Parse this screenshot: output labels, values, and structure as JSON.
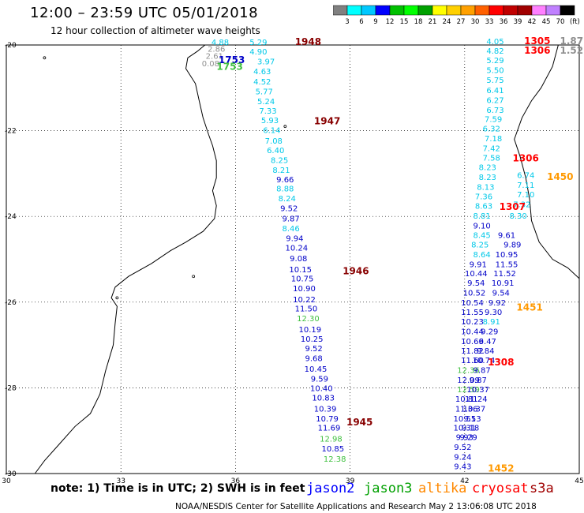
{
  "title": "12:00 – 23:59 UTC 05/01/2018",
  "subtitle": "12 hour collection of altimeter wave heights",
  "colorbar": {
    "unit": "(ft)",
    "ticks": [
      "3",
      "6",
      "9",
      "12",
      "15",
      "18",
      "21",
      "24",
      "27",
      "30",
      "33",
      "36",
      "39",
      "42",
      "45",
      "70"
    ],
    "colors": [
      "#808080",
      "#00ffff",
      "#00c8ff",
      "#0000ff",
      "#00c000",
      "#00ff00",
      "#00a000",
      "#ffff00",
      "#ffd000",
      "#ffa000",
      "#ff6000",
      "#ff0000",
      "#c00000",
      "#a00000",
      "#ff80ff",
      "#c080ff",
      "#000000"
    ]
  },
  "axes": {
    "lon_ticks": [
      "30",
      "33",
      "36",
      "39",
      "42",
      "45"
    ],
    "lat_ticks": [
      "-20",
      "-22",
      "-24",
      "-26",
      "-28",
      "-30"
    ],
    "lon_min": 30,
    "lon_max": 45,
    "lat_min": -30,
    "lat_max": -20
  },
  "note": "note: 1) Time is in UTC; 2) SWH is in feet",
  "legend": [
    {
      "name": "jason2",
      "color": "#0000ff"
    },
    {
      "name": "jason3",
      "color": "#00a000"
    },
    {
      "name": "altika",
      "color": "#ff8800"
    },
    {
      "name": "cryosat",
      "color": "#ff0000"
    },
    {
      "name": "s3a",
      "color": "#a00000"
    }
  ],
  "credit": "NOAA/NESDIS Center for Satellite Applications and Research   May  2 13:06:08 UTC 2018",
  "colors": {
    "cyan": "#00c8e8",
    "blue": "#0000c8",
    "green": "#40c040",
    "orange": "#ff9900",
    "red": "#ff0000",
    "darkred": "#880000",
    "gray": "#909090"
  },
  "track_west": [
    {
      "lon": 35.6,
      "lat": -20.0,
      "v": "4.88",
      "c": "cyan"
    },
    {
      "lon": 36.6,
      "lat": -20.0,
      "v": "5.29",
      "c": "cyan"
    },
    {
      "lon": 35.5,
      "lat": -20.16,
      "v": "2.86",
      "c": "gray"
    },
    {
      "lon": 36.6,
      "lat": -20.22,
      "v": "4.90",
      "c": "cyan"
    },
    {
      "lon": 35.45,
      "lat": -20.32,
      "v": "2.61",
      "c": "gray"
    },
    {
      "lon": 36.8,
      "lat": -20.45,
      "v": "3.97",
      "c": "cyan"
    },
    {
      "lon": 35.35,
      "lat": -20.5,
      "v": "0.08",
      "c": "gray"
    },
    {
      "lon": 36.7,
      "lat": -20.68,
      "v": "4.63",
      "c": "cyan"
    },
    {
      "lon": 36.7,
      "lat": -20.92,
      "v": "4.52",
      "c": "cyan"
    },
    {
      "lon": 36.75,
      "lat": -21.15,
      "v": "5.77",
      "c": "cyan"
    },
    {
      "lon": 36.8,
      "lat": -21.38,
      "v": "5.24",
      "c": "cyan"
    },
    {
      "lon": 36.85,
      "lat": -21.6,
      "v": "7.33",
      "c": "cyan"
    },
    {
      "lon": 36.9,
      "lat": -21.82,
      "v": "5.93",
      "c": "cyan"
    },
    {
      "lon": 36.95,
      "lat": -22.05,
      "v": "6.14",
      "c": "cyan"
    },
    {
      "lon": 37.0,
      "lat": -22.3,
      "v": "7.08",
      "c": "cyan"
    },
    {
      "lon": 37.05,
      "lat": -22.52,
      "v": "6.40",
      "c": "cyan"
    },
    {
      "lon": 37.15,
      "lat": -22.75,
      "v": "8.25",
      "c": "cyan"
    },
    {
      "lon": 37.2,
      "lat": -22.98,
      "v": "8.21",
      "c": "cyan"
    },
    {
      "lon": 37.3,
      "lat": -23.2,
      "v": "9.66",
      "c": "blue"
    },
    {
      "lon": 37.3,
      "lat": -23.42,
      "v": "8.88",
      "c": "cyan"
    },
    {
      "lon": 37.35,
      "lat": -23.65,
      "v": "8.24",
      "c": "cyan"
    },
    {
      "lon": 37.4,
      "lat": -23.88,
      "v": "9.52",
      "c": "blue"
    },
    {
      "lon": 37.45,
      "lat": -24.12,
      "v": "9.87",
      "c": "blue"
    },
    {
      "lon": 37.45,
      "lat": -24.35,
      "v": "8.46",
      "c": "cyan"
    },
    {
      "lon": 37.55,
      "lat": -24.58,
      "v": "9.94",
      "c": "blue"
    },
    {
      "lon": 37.6,
      "lat": -24.8,
      "v": "10.24",
      "c": "blue"
    },
    {
      "lon": 37.65,
      "lat": -25.05,
      "v": "9.08",
      "c": "blue"
    },
    {
      "lon": 37.7,
      "lat": -25.3,
      "v": "10.15",
      "c": "blue"
    },
    {
      "lon": 37.75,
      "lat": -25.52,
      "v": "10.75",
      "c": "blue"
    },
    {
      "lon": 37.8,
      "lat": -25.75,
      "v": "10.90",
      "c": "blue"
    },
    {
      "lon": 37.8,
      "lat": -26.0,
      "v": "10.22",
      "c": "blue"
    },
    {
      "lon": 37.85,
      "lat": -26.22,
      "v": "11.50",
      "c": "blue"
    },
    {
      "lon": 37.9,
      "lat": -26.45,
      "v": "12.30",
      "c": "green"
    },
    {
      "lon": 37.95,
      "lat": -26.7,
      "v": "10.19",
      "c": "blue"
    },
    {
      "lon": 38.0,
      "lat": -26.92,
      "v": "10.25",
      "c": "blue"
    },
    {
      "lon": 38.05,
      "lat": -27.15,
      "v": "9.52",
      "c": "blue"
    },
    {
      "lon": 38.05,
      "lat": -27.38,
      "v": "9.68",
      "c": "blue"
    },
    {
      "lon": 38.1,
      "lat": -27.62,
      "v": "10.45",
      "c": "blue"
    },
    {
      "lon": 38.2,
      "lat": -27.85,
      "v": "9.59",
      "c": "blue"
    },
    {
      "lon": 38.25,
      "lat": -28.08,
      "v": "10.40",
      "c": "blue"
    },
    {
      "lon": 38.3,
      "lat": -28.3,
      "v": "10.83",
      "c": "blue"
    },
    {
      "lon": 38.35,
      "lat": -28.55,
      "v": "10.39",
      "c": "blue"
    },
    {
      "lon": 38.4,
      "lat": -28.78,
      "v": "10.79",
      "c": "blue"
    },
    {
      "lon": 38.45,
      "lat": -29.0,
      "v": "11.69",
      "c": "blue"
    },
    {
      "lon": 38.5,
      "lat": -29.25,
      "v": "12.98",
      "c": "green"
    },
    {
      "lon": 38.55,
      "lat": -29.48,
      "v": "10.85",
      "c": "blue"
    },
    {
      "lon": 38.6,
      "lat": -29.72,
      "v": "12.38",
      "c": "green"
    }
  ],
  "track_east": [
    {
      "lon": 42.8,
      "lat": -19.98,
      "v": "4.05",
      "c": "cyan"
    },
    {
      "lon": 42.8,
      "lat": -20.2,
      "v": "4.82",
      "c": "cyan"
    },
    {
      "lon": 42.8,
      "lat": -20.42,
      "v": "5.29",
      "c": "cyan"
    },
    {
      "lon": 42.8,
      "lat": -20.65,
      "v": "5.50",
      "c": "cyan"
    },
    {
      "lon": 42.8,
      "lat": -20.88,
      "v": "5.75",
      "c": "cyan"
    },
    {
      "lon": 42.8,
      "lat": -21.12,
      "v": "6.41",
      "c": "cyan"
    },
    {
      "lon": 42.8,
      "lat": -21.35,
      "v": "6.27",
      "c": "cyan"
    },
    {
      "lon": 42.8,
      "lat": -21.58,
      "v": "6.73",
      "c": "cyan"
    },
    {
      "lon": 42.75,
      "lat": -21.8,
      "v": "7.59",
      "c": "cyan"
    },
    {
      "lon": 42.7,
      "lat": -22.02,
      "v": "6.32",
      "c": "cyan"
    },
    {
      "lon": 42.75,
      "lat": -22.25,
      "v": "7.18",
      "c": "cyan"
    },
    {
      "lon": 42.7,
      "lat": -22.48,
      "v": "7.42",
      "c": "cyan"
    },
    {
      "lon": 42.7,
      "lat": -22.7,
      "v": "7.58",
      "c": "cyan"
    },
    {
      "lon": 42.6,
      "lat": -22.92,
      "v": "8.23",
      "c": "cyan"
    },
    {
      "lon": 42.6,
      "lat": -23.15,
      "v": "8.23",
      "c": "cyan"
    },
    {
      "lon": 42.55,
      "lat": -23.38,
      "v": "8.13",
      "c": "cyan"
    },
    {
      "lon": 42.5,
      "lat": -23.6,
      "v": "7.36",
      "c": "cyan"
    },
    {
      "lon": 42.5,
      "lat": -23.82,
      "v": "8.63",
      "c": "cyan"
    },
    {
      "lon": 42.45,
      "lat": -24.05,
      "v": "8.81",
      "c": "cyan"
    },
    {
      "lon": 42.45,
      "lat": -24.28,
      "v": "9.10",
      "c": "blue"
    },
    {
      "lon": 42.45,
      "lat": -24.5,
      "v": "8.45",
      "c": "cyan"
    },
    {
      "lon": 42.4,
      "lat": -24.72,
      "v": "8.25",
      "c": "cyan"
    },
    {
      "lon": 42.45,
      "lat": -24.95,
      "v": "8.64",
      "c": "cyan"
    },
    {
      "lon": 42.35,
      "lat": -25.18,
      "v": "9.91",
      "c": "blue"
    },
    {
      "lon": 42.3,
      "lat": -25.4,
      "v": "10.44",
      "c": "blue"
    },
    {
      "lon": 42.3,
      "lat": -25.62,
      "v": "9.54",
      "c": "blue"
    },
    {
      "lon": 42.25,
      "lat": -25.85,
      "v": "10.52",
      "c": "blue"
    },
    {
      "lon": 42.2,
      "lat": -26.08,
      "v": "10.54",
      "c": "blue"
    },
    {
      "lon": 42.2,
      "lat": -26.3,
      "v": "11.55",
      "c": "blue"
    },
    {
      "lon": 42.2,
      "lat": -26.52,
      "v": "10.23",
      "c": "blue"
    },
    {
      "lon": 42.2,
      "lat": -26.75,
      "v": "10.44",
      "c": "blue"
    },
    {
      "lon": 42.2,
      "lat": -26.98,
      "v": "10.66",
      "c": "blue"
    },
    {
      "lon": 42.2,
      "lat": -27.2,
      "v": "11.82",
      "c": "blue"
    },
    {
      "lon": 42.2,
      "lat": -27.42,
      "v": "11.60",
      "c": "blue"
    },
    {
      "lon": 42.1,
      "lat": -27.65,
      "v": "12.36",
      "c": "green"
    },
    {
      "lon": 42.1,
      "lat": -27.88,
      "v": "12.09",
      "c": "blue"
    },
    {
      "lon": 42.1,
      "lat": -28.1,
      "v": "12.59",
      "c": "green"
    },
    {
      "lon": 42.05,
      "lat": -28.32,
      "v": "10.81",
      "c": "blue"
    },
    {
      "lon": 42.05,
      "lat": -28.55,
      "v": "11.36",
      "c": "blue"
    },
    {
      "lon": 42.0,
      "lat": -28.78,
      "v": "10.51",
      "c": "blue"
    },
    {
      "lon": 42.0,
      "lat": -29.0,
      "v": "10.31",
      "c": "blue"
    },
    {
      "lon": 42.0,
      "lat": -29.22,
      "v": "9.93",
      "c": "blue"
    },
    {
      "lon": 41.95,
      "lat": -29.45,
      "v": "9.52",
      "c": "blue"
    },
    {
      "lon": 41.95,
      "lat": -29.68,
      "v": "9.24",
      "c": "blue"
    },
    {
      "lon": 41.95,
      "lat": -29.9,
      "v": "9.43",
      "c": "blue"
    }
  ],
  "track_east2": [
    {
      "lon": 43.1,
      "lat": -24.5,
      "v": "9.61",
      "c": "blue"
    },
    {
      "lon": 43.25,
      "lat": -24.72,
      "v": "9.89",
      "c": "blue"
    },
    {
      "lon": 43.1,
      "lat": -24.95,
      "v": "10.95",
      "c": "blue"
    },
    {
      "lon": 43.1,
      "lat": -25.18,
      "v": "11.55",
      "c": "blue"
    },
    {
      "lon": 43.05,
      "lat": -25.4,
      "v": "11.52",
      "c": "blue"
    },
    {
      "lon": 43.0,
      "lat": -25.62,
      "v": "10.91",
      "c": "blue"
    },
    {
      "lon": 42.95,
      "lat": -25.85,
      "v": "9.54",
      "c": "blue"
    },
    {
      "lon": 42.85,
      "lat": -26.08,
      "v": "9.92",
      "c": "blue"
    },
    {
      "lon": 42.75,
      "lat": -26.3,
      "v": "9.30",
      "c": "blue"
    },
    {
      "lon": 42.7,
      "lat": -26.52,
      "v": "8.91",
      "c": "cyan"
    },
    {
      "lon": 42.65,
      "lat": -26.75,
      "v": "9.29",
      "c": "blue"
    },
    {
      "lon": 42.6,
      "lat": -26.98,
      "v": "9.47",
      "c": "blue"
    },
    {
      "lon": 42.55,
      "lat": -27.2,
      "v": "9.84",
      "c": "blue"
    },
    {
      "lon": 42.5,
      "lat": -27.42,
      "v": "10.74",
      "c": "blue"
    },
    {
      "lon": 42.45,
      "lat": -27.65,
      "v": "9.87",
      "c": "blue"
    },
    {
      "lon": 42.35,
      "lat": -27.88,
      "v": "9.87",
      "c": "blue"
    },
    {
      "lon": 42.35,
      "lat": -28.1,
      "v": "10.37",
      "c": "blue"
    },
    {
      "lon": 42.3,
      "lat": -28.32,
      "v": "11.24",
      "c": "blue"
    },
    {
      "lon": 42.25,
      "lat": -28.55,
      "v": "10.37",
      "c": "blue"
    },
    {
      "lon": 42.2,
      "lat": -28.78,
      "v": "9.53",
      "c": "blue"
    },
    {
      "lon": 42.15,
      "lat": -29.0,
      "v": "9.18",
      "c": "blue"
    },
    {
      "lon": 42.1,
      "lat": -29.22,
      "v": "9.29",
      "c": "blue"
    }
  ],
  "track_east3": [
    {
      "lon": 43.6,
      "lat": -23.1,
      "v": "6.74",
      "c": "cyan"
    },
    {
      "lon": 43.6,
      "lat": -23.33,
      "v": "7.11",
      "c": "cyan"
    },
    {
      "lon": 43.6,
      "lat": -23.55,
      "v": "7.10",
      "c": "cyan"
    },
    {
      "lon": 43.5,
      "lat": -23.78,
      "v": "7.32",
      "c": "cyan"
    },
    {
      "lon": 43.4,
      "lat": -24.05,
      "v": "8.30",
      "c": "cyan"
    }
  ],
  "time_labels": [
    {
      "lon": 37.9,
      "lat": -20.0,
      "v": "1948",
      "c": "darkred"
    },
    {
      "lon": 35.9,
      "lat": -20.42,
      "v": "1753",
      "c": "blue"
    },
    {
      "lon": 35.85,
      "lat": -20.58,
      "v": "1753",
      "c": "green"
    },
    {
      "lon": 38.4,
      "lat": -21.85,
      "v": "1947",
      "c": "darkred"
    },
    {
      "lon": 39.15,
      "lat": -25.35,
      "v": "1946",
      "c": "darkred"
    },
    {
      "lon": 39.25,
      "lat": -28.88,
      "v": "1945",
      "c": "darkred"
    },
    {
      "lon": 43.9,
      "lat": -19.98,
      "v": "1305",
      "c": "red"
    },
    {
      "lon": 43.9,
      "lat": -20.2,
      "v": "1306",
      "c": "red"
    },
    {
      "lon": 44.8,
      "lat": -19.98,
      "v": "1.87",
      "c": "gray"
    },
    {
      "lon": 44.8,
      "lat": -20.2,
      "v": "1.52",
      "c": "gray"
    },
    {
      "lon": 43.6,
      "lat": -22.72,
      "v": "1306",
      "c": "red"
    },
    {
      "lon": 44.5,
      "lat": -23.15,
      "v": "1450",
      "c": "orange"
    },
    {
      "lon": 43.25,
      "lat": -23.85,
      "v": "1307",
      "c": "red"
    },
    {
      "lon": 43.7,
      "lat": -26.2,
      "v": "1451",
      "c": "orange"
    },
    {
      "lon": 42.95,
      "lat": -27.48,
      "v": "1308",
      "c": "red"
    },
    {
      "lon": 42.95,
      "lat": -29.95,
      "v": "1452",
      "c": "orange"
    }
  ]
}
